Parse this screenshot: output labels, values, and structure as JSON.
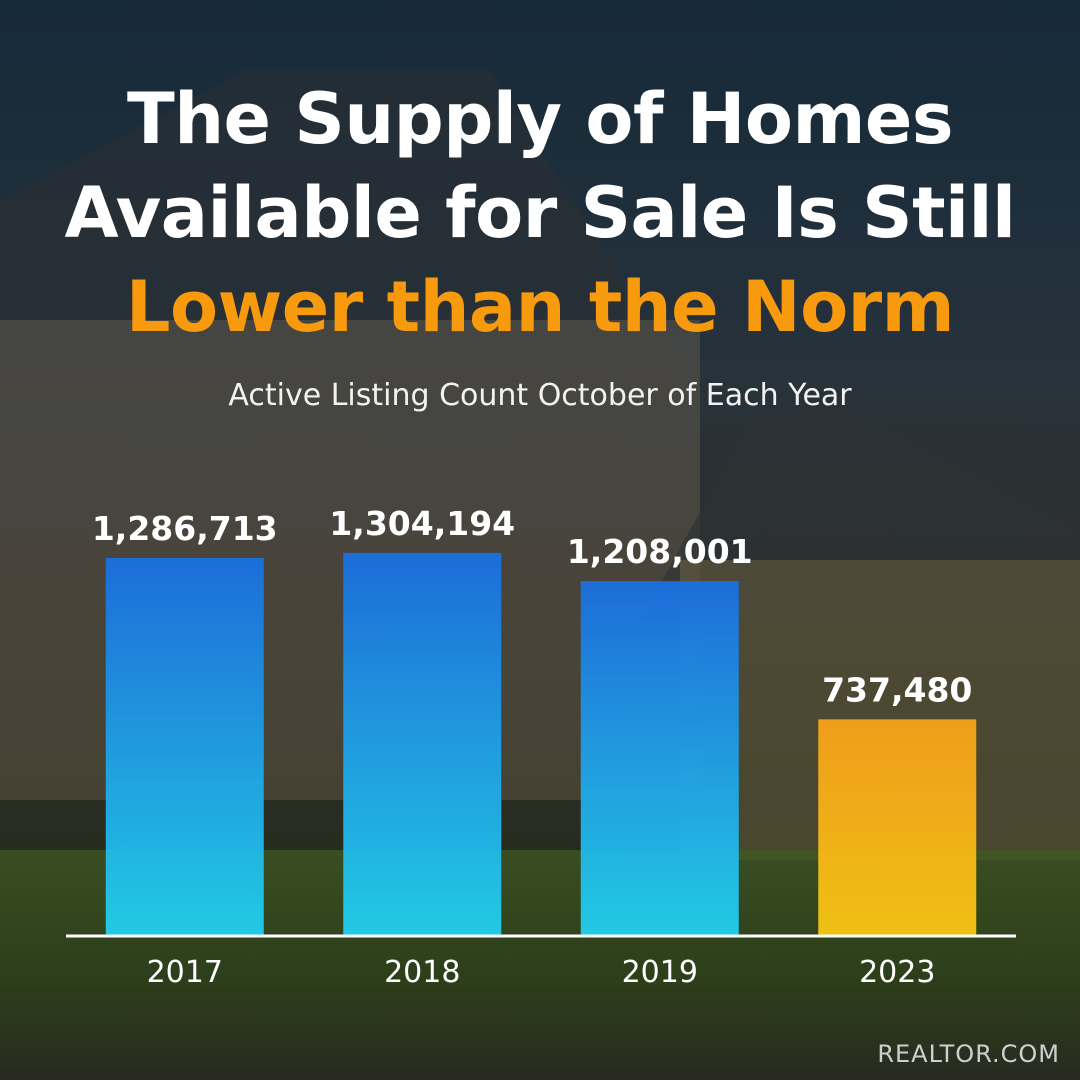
{
  "header": {
    "title_line_1": "The Supply of Homes",
    "title_line_2": "Available for Sale Is Still",
    "title_line_3": "Lower than the Norm",
    "subtitle": "Active Listing Count October of Each Year"
  },
  "footer": {
    "source": "REALTOR.COM"
  },
  "chart_data": {
    "type": "bar",
    "title": "The Supply of Homes Available for Sale Is Still Lower than the Norm",
    "subtitle": "Active Listing Count October of Each Year",
    "categories": [
      "2017",
      "2018",
      "2019",
      "2023"
    ],
    "values": [
      1286713,
      1304194,
      1208001,
      737480
    ],
    "value_labels": [
      "1,286,713",
      "1,304,194",
      "1,208,001",
      "737,480"
    ],
    "ylim": [
      0,
      1600000
    ],
    "grid": false,
    "legend": "none",
    "colors": {
      "historic_top": "#1a6fe0",
      "historic_bottom": "#22d0ee",
      "current_top": "#f7a21a",
      "current_bottom": "#f9c613",
      "highlight": "#f79a0e"
    }
  }
}
